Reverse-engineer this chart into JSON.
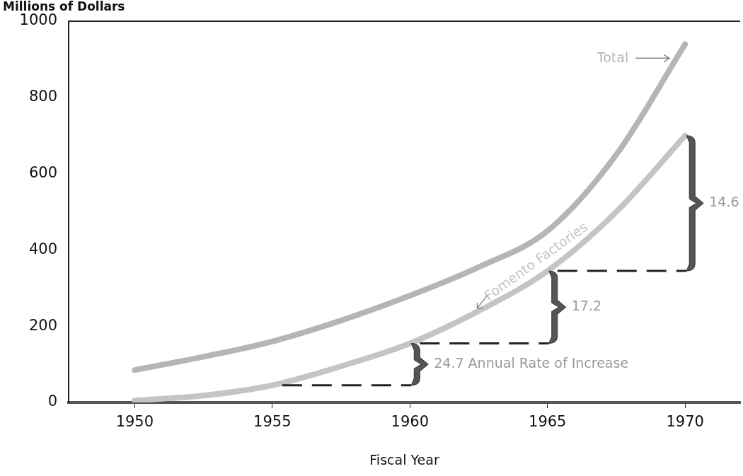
{
  "chart_data": {
    "type": "line",
    "ylabel": "Millions of Dollars",
    "xlabel": "Fiscal Year",
    "xlim": [
      1947.6,
      1972
    ],
    "xticks": [
      1950,
      1955,
      1960,
      1965,
      1970
    ],
    "ylim": [
      0,
      1000
    ],
    "yticks": [
      0,
      200,
      400,
      600,
      800,
      1000
    ],
    "x": [
      1950,
      1952.5,
      1955,
      1957.5,
      1960,
      1962.5,
      1965,
      1967.5,
      1970
    ],
    "series": [
      {
        "name": "Total",
        "color": "#b5b5b5",
        "values": [
          85,
          120,
          160,
          215,
          280,
          355,
          450,
          650,
          940
        ]
      },
      {
        "name": "Fomento Factories",
        "color": "#c4c4c4",
        "values": [
          5,
          18,
          45,
          95,
          155,
          240,
          345,
          500,
          700
        ]
      }
    ],
    "annotations": [
      "24.7 Annual Rate of Increase",
      "17.2",
      "14.6"
    ],
    "grid": false,
    "legend": false,
    "marker": "none"
  }
}
